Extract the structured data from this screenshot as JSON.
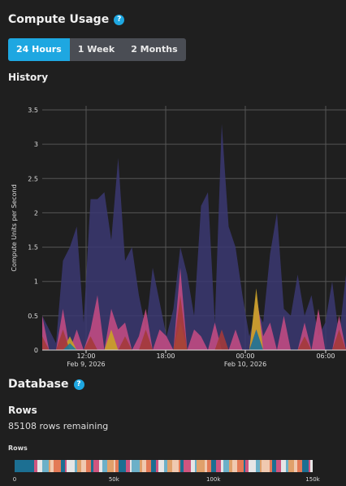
{
  "compute": {
    "title": "Compute Usage",
    "help_glyph": "?",
    "tabs": [
      {
        "label": "24 Hours",
        "active": true
      },
      {
        "label": "1 Week",
        "active": false
      },
      {
        "label": "2 Months",
        "active": false
      }
    ],
    "history_title": "History"
  },
  "chart_data": {
    "type": "area",
    "ylabel": "Compute Units per Second",
    "ylim": [
      0,
      3.5
    ],
    "yticks": [
      "0",
      "0.5",
      "1",
      "1.5",
      "2",
      "2.5",
      "3",
      "3.5"
    ],
    "xticks": [
      {
        "label": "12:00",
        "sub": ""
      },
      {
        "label": "18:00",
        "sub": ""
      },
      {
        "label": "00:00",
        "sub": ""
      },
      {
        "label": "06:00",
        "sub": ""
      }
    ],
    "date_labels": [
      "Feb 9, 2026",
      "Feb 10, 2026"
    ],
    "grid": true,
    "colors": {
      "grid": "#555555",
      "axis": "#dddddd"
    },
    "series": [
      {
        "color": "#3b3872",
        "values": [
          0.5,
          0.3,
          0.1,
          1.3,
          1.5,
          1.8,
          0.4,
          2.2,
          2.2,
          2.3,
          1.6,
          2.8,
          1.3,
          1.5,
          0.8,
          0.3,
          1.2,
          0.7,
          0.2,
          0.6,
          1.5,
          1.1,
          0.5,
          2.1,
          2.3,
          0.4,
          3.3,
          1.8,
          1.5,
          0.8,
          0.2,
          0.6,
          0.4,
          1.4,
          2.0,
          0.6,
          0.5,
          1.1,
          0.5,
          0.8,
          0.2,
          0.4,
          1.0,
          0.2,
          1.1
        ]
      },
      {
        "color": "#c04a82",
        "values": [
          0.5,
          0.0,
          0.0,
          0.6,
          0.0,
          0.3,
          0.0,
          0.3,
          0.8,
          0.0,
          0.6,
          0.3,
          0.4,
          0.0,
          0.2,
          0.6,
          0.0,
          0.3,
          0.2,
          0.0,
          1.2,
          0.0,
          0.3,
          0.2,
          0.0,
          0.4,
          0.0,
          0.0,
          0.3,
          0.0,
          0.0,
          0.8,
          0.2,
          0.4,
          0.0,
          0.5,
          0.0,
          0.0,
          0.4,
          0.0,
          0.6,
          0.0,
          0.0,
          0.5,
          0.0
        ]
      },
      {
        "color": "#c9a227",
        "values": [
          0.0,
          0.0,
          0.0,
          0.0,
          0.2,
          0.0,
          0.0,
          0.0,
          0.0,
          0.0,
          0.3,
          0.0,
          0.0,
          0.0,
          0.0,
          0.0,
          0.0,
          0.0,
          0.0,
          0.0,
          0.4,
          0.0,
          0.0,
          0.0,
          0.0,
          0.0,
          0.0,
          0.0,
          0.0,
          0.0,
          0.0,
          0.9,
          0.0,
          0.0,
          0.0,
          0.0,
          0.0,
          0.0,
          0.0,
          0.0,
          0.0,
          0.0,
          0.0,
          0.0,
          0.0
        ]
      },
      {
        "color": "#a33a3a",
        "values": [
          0.2,
          0.0,
          0.0,
          0.3,
          0.0,
          0.0,
          0.0,
          0.2,
          0.0,
          0.0,
          0.0,
          0.0,
          0.2,
          0.0,
          0.0,
          0.3,
          0.0,
          0.0,
          0.0,
          0.0,
          0.8,
          0.0,
          0.0,
          0.0,
          0.0,
          0.0,
          0.3,
          0.0,
          0.0,
          0.0,
          0.0,
          0.3,
          0.0,
          0.0,
          0.0,
          0.0,
          0.0,
          0.0,
          0.2,
          0.0,
          0.0,
          0.0,
          0.0,
          0.3,
          0.0
        ]
      },
      {
        "color": "#1f7a99",
        "values": [
          0.0,
          0.0,
          0.0,
          0.0,
          0.1,
          0.0,
          0.0,
          0.0,
          0.0,
          0.0,
          0.0,
          0.0,
          0.0,
          0.0,
          0.0,
          0.0,
          0.0,
          0.0,
          0.0,
          0.0,
          0.0,
          0.0,
          0.0,
          0.0,
          0.0,
          0.0,
          0.0,
          0.0,
          0.0,
          0.0,
          0.0,
          0.3,
          0.0,
          0.0,
          0.0,
          0.0,
          0.0,
          0.0,
          0.0,
          0.0,
          0.0,
          0.0,
          0.0,
          0.0,
          0.0
        ]
      }
    ]
  },
  "database": {
    "title": "Database",
    "help_glyph": "?",
    "rows_title": "Rows",
    "rows_remaining": "85108 rows remaining",
    "bar_label": "Rows",
    "bar_ticks": [
      "0",
      "50k",
      "100k",
      "150k"
    ],
    "bar_max": 150000,
    "bar_colors": [
      "#1c6f92",
      "#2b88a8",
      "#e0a06a",
      "#c14a4a",
      "#d0557f",
      "#7a5ab0",
      "#f0c9b0",
      "#b1cfe0",
      "#e6e6e6",
      "#9b7cc8",
      "#e37a56",
      "#f3d27a",
      "#6cb0c8",
      "#c96a9a"
    ]
  }
}
